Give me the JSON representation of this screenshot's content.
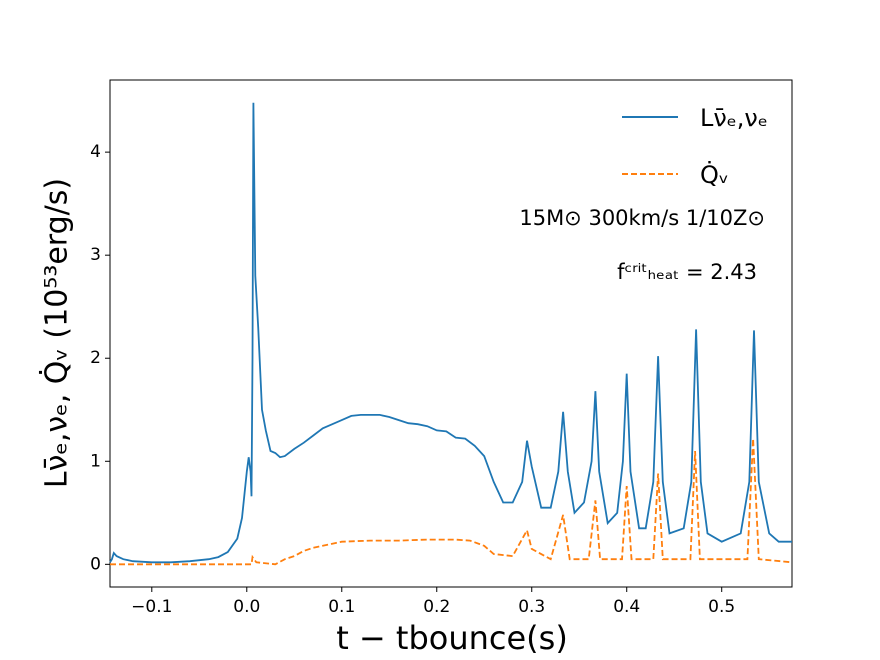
{
  "chart_data": {
    "type": "line",
    "xlabel": "t − tbounce(s)",
    "ylabel": "Lν̄ₑ,νₑ,  Q̇ᵥ (10⁵³erg/s)",
    "annotations": [
      "15M⊙ 300km/s 1/10Z⊙",
      "fᶜʳⁱᵗₕₑₐₜ = 2.43"
    ],
    "legend": "upper right",
    "xlim": [
      -0.144,
      0.574
    ],
    "ylim": [
      -0.22,
      4.7
    ],
    "xticks": [
      {
        "value": -0.1,
        "label": "−0.1"
      },
      {
        "value": 0,
        "label": "0.0"
      },
      0.1,
      0.2,
      0.3,
      0.4,
      0.5
    ],
    "yticks": [
      0,
      1,
      2,
      3,
      4
    ],
    "series": [
      {
        "name": "Lν̄ₑ,νₑ",
        "color": "#1f77b4",
        "linestyle": "solid",
        "x": [
          -0.144,
          -0.142,
          -0.14,
          -0.137,
          -0.13,
          -0.12,
          -0.1,
          -0.08,
          -0.06,
          -0.04,
          -0.03,
          -0.02,
          -0.01,
          -0.005,
          0,
          0.002,
          0.004,
          0.005,
          0.006,
          0.007,
          0.009,
          0.012,
          0.016,
          0.02,
          0.025,
          0.03,
          0.035,
          0.04,
          0.05,
          0.06,
          0.07,
          0.08,
          0.09,
          0.1,
          0.11,
          0.12,
          0.13,
          0.14,
          0.15,
          0.16,
          0.17,
          0.18,
          0.19,
          0.2,
          0.21,
          0.22,
          0.23,
          0.24,
          0.25,
          0.26,
          0.27,
          0.28,
          0.29,
          0.295,
          0.3,
          0.31,
          0.32,
          0.328,
          0.333,
          0.338,
          0.345,
          0.355,
          0.363,
          0.367,
          0.371,
          0.38,
          0.39,
          0.396,
          0.4,
          0.404,
          0.413,
          0.42,
          0.428,
          0.433,
          0.438,
          0.445,
          0.46,
          0.468,
          0.473,
          0.478,
          0.485,
          0.5,
          0.52,
          0.529,
          0.534,
          0.539,
          0.55,
          0.56,
          0.574
        ],
        "values": [
          0.02,
          0.05,
          0.11,
          0.08,
          0.05,
          0.03,
          0.02,
          0.02,
          0.03,
          0.05,
          0.07,
          0.12,
          0.25,
          0.45,
          0.9,
          1.04,
          0.9,
          0.66,
          2.0,
          4.48,
          2.8,
          2.3,
          1.5,
          1.3,
          1.1,
          1.08,
          1.04,
          1.05,
          1.12,
          1.18,
          1.25,
          1.32,
          1.36,
          1.4,
          1.44,
          1.45,
          1.45,
          1.45,
          1.43,
          1.4,
          1.37,
          1.36,
          1.34,
          1.3,
          1.29,
          1.23,
          1.22,
          1.15,
          1.05,
          0.8,
          0.6,
          0.6,
          0.8,
          1.2,
          0.95,
          0.55,
          0.55,
          0.9,
          1.48,
          0.9,
          0.5,
          0.6,
          1.0,
          1.68,
          0.9,
          0.4,
          0.5,
          1.0,
          1.85,
          0.9,
          0.35,
          0.35,
          0.8,
          2.02,
          0.8,
          0.3,
          0.35,
          0.8,
          2.28,
          0.8,
          0.3,
          0.22,
          0.3,
          0.8,
          2.27,
          0.8,
          0.3,
          0.22,
          0.22
        ]
      },
      {
        "name": "Q̇ᵥ",
        "color": "#ff7f0e",
        "linestyle": "dashed",
        "x": [
          -0.144,
          0.005,
          0.006,
          0.01,
          0.03,
          0.04,
          0.05,
          0.06,
          0.07,
          0.08,
          0.09,
          0.1,
          0.13,
          0.16,
          0.19,
          0.22,
          0.235,
          0.25,
          0.26,
          0.28,
          0.295,
          0.3,
          0.32,
          0.333,
          0.34,
          0.36,
          0.367,
          0.372,
          0.395,
          0.4,
          0.405,
          0.428,
          0.433,
          0.438,
          0.467,
          0.472,
          0.477,
          0.527,
          0.533,
          0.539,
          0.574
        ],
        "values": [
          0,
          0,
          0.07,
          0.02,
          0,
          0.05,
          0.08,
          0.13,
          0.16,
          0.18,
          0.2,
          0.22,
          0.23,
          0.23,
          0.24,
          0.24,
          0.23,
          0.18,
          0.1,
          0.08,
          0.33,
          0.15,
          0.05,
          0.48,
          0.05,
          0.05,
          0.62,
          0.05,
          0.05,
          0.76,
          0.05,
          0.05,
          0.88,
          0.05,
          0.05,
          1.1,
          0.05,
          0.05,
          1.22,
          0.05,
          0.02
        ]
      }
    ]
  }
}
